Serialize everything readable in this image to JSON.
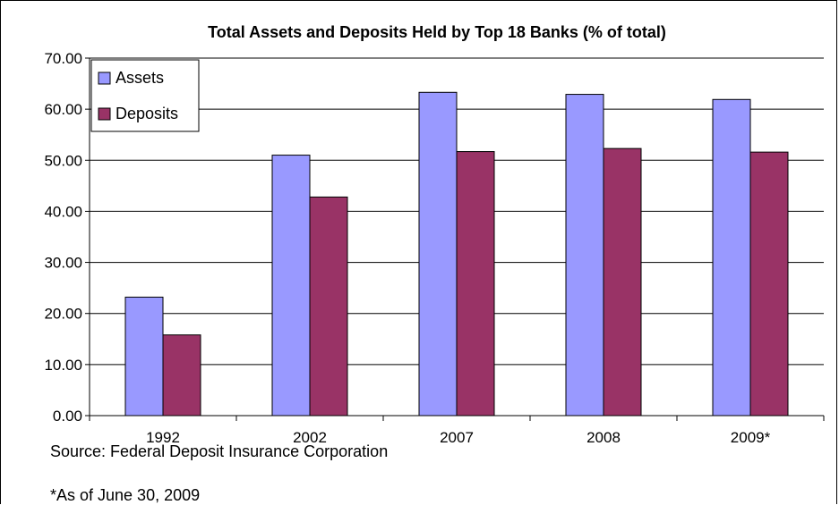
{
  "chart_data": {
    "type": "bar",
    "title": "Total Assets and Deposits Held by Top 18 Banks (% of total)",
    "categories": [
      "1992",
      "2002",
      "2007",
      "2008",
      "2009*"
    ],
    "series": [
      {
        "name": "Assets",
        "values": [
          23.2,
          51.0,
          63.3,
          62.9,
          61.9
        ],
        "color": "#9999FF"
      },
      {
        "name": "Deposits",
        "values": [
          15.8,
          42.8,
          51.7,
          52.3,
          51.6
        ],
        "color": "#993366"
      }
    ],
    "ylim": [
      0,
      70
    ],
    "yticks": [
      "0.00",
      "10.00",
      "20.00",
      "30.00",
      "40.00",
      "50.00",
      "60.00",
      "70.00"
    ],
    "grid": true,
    "legend_position": "top-left",
    "xlabel": "",
    "ylabel": ""
  },
  "notes": {
    "source": "Source: Federal Deposit Insurance Corporation",
    "as_of": "*As of June 30, 2009"
  }
}
